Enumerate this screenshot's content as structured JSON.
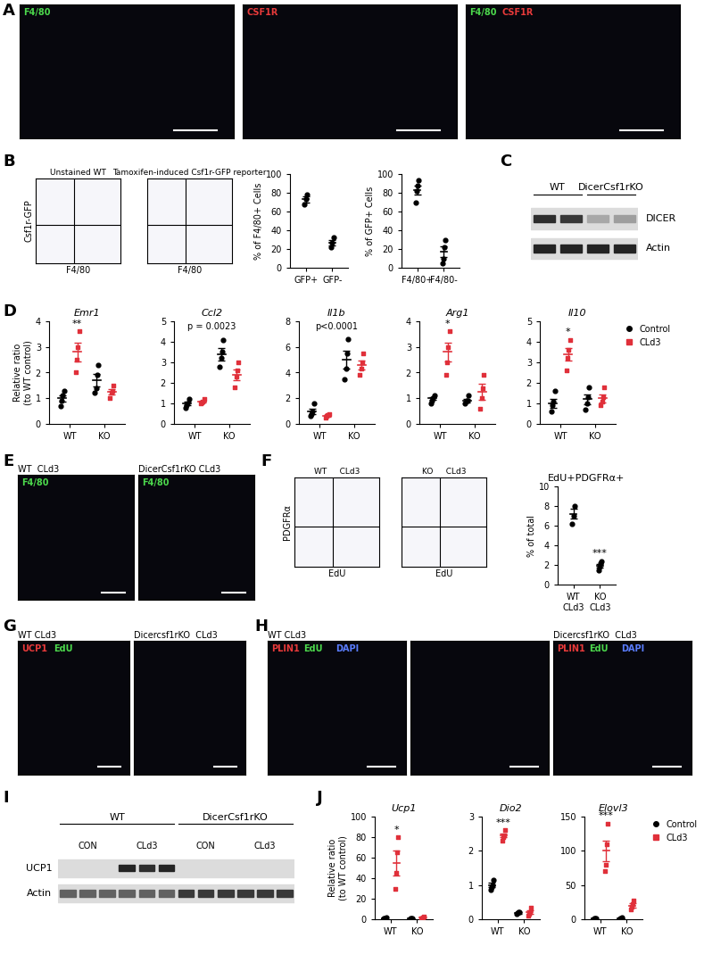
{
  "panel_letters": [
    "A",
    "B",
    "C",
    "D",
    "E",
    "F",
    "G",
    "H",
    "I",
    "J"
  ],
  "images": [
    {
      "panel": "A",
      "labels": [
        {
          "text": "F4/80",
          "color": "#4cd94c"
        }
      ]
    },
    {
      "panel": "A",
      "labels": [
        {
          "text": "CSF1R",
          "color": "#e83a3a"
        }
      ]
    },
    {
      "panel": "A",
      "labels": [
        {
          "text": "F4/80",
          "color": "#4cd94c"
        },
        {
          "text": "CSF1R",
          "color": "#e83a3a"
        }
      ]
    },
    {
      "panel": "E",
      "caption": "WT  CLd3",
      "labels": [
        {
          "text": "F4/80",
          "color": "#4cd94c"
        }
      ]
    },
    {
      "panel": "E",
      "caption": "DicerCsf1rKO CLd3",
      "labels": [
        {
          "text": "F4/80",
          "color": "#4cd94c"
        }
      ]
    },
    {
      "panel": "G",
      "caption": "WT CLd3",
      "labels": [
        {
          "text": "UCP1",
          "color": "#e83a3a"
        },
        {
          "text": "EdU",
          "color": "#4cd94c"
        }
      ]
    },
    {
      "panel": "G",
      "caption": "Dicercsf1rKO  CLd3"
    },
    {
      "panel": "H",
      "caption": "WT CLd3",
      "labels": [
        {
          "text": "PLIN1",
          "color": "#e83a3a"
        },
        {
          "text": "EdU",
          "color": "#4cd94c"
        },
        {
          "text": "DAPI",
          "color": "#5a7dff"
        }
      ]
    },
    {
      "panel": "H"
    },
    {
      "panel": "H",
      "caption": "Dicercsf1rKO  CLd3",
      "labels": [
        {
          "text": "PLIN1",
          "color": "#e83a3a"
        },
        {
          "text": "EdU",
          "color": "#4cd94c"
        },
        {
          "text": "DAPI",
          "color": "#5a7dff"
        }
      ]
    }
  ],
  "flow_plots": [
    {
      "panel": "B",
      "title": "Unstained WT",
      "xlabel": "F4/80",
      "ylabel": "Csf1r-GFP",
      "tick_labels": false
    },
    {
      "panel": "B",
      "title": "Tamoxifen-induced Csf1r-GFP reporter",
      "xlabel": "F4/80",
      "tick_labels": false
    },
    {
      "panel": "F",
      "title": "WT     CLd3",
      "xlabel": "EdU",
      "ylabel": "PDGFRα",
      "tick_labels": false
    },
    {
      "panel": "F",
      "title": "KO     CLd3",
      "xlabel": "EdU",
      "tick_labels": false
    }
  ],
  "blots": [
    {
      "panel": "C",
      "groups": [
        {
          "label": "WT",
          "lanes": 2
        },
        {
          "label": "DicerCsf1rKO",
          "lanes": 2
        }
      ],
      "rows": [
        {
          "label": "DICER",
          "intensity": [
            0.85,
            0.8,
            0.25,
            0.3
          ]
        },
        {
          "label": "Actin",
          "intensity": [
            0.9,
            0.9,
            0.9,
            0.9
          ]
        }
      ]
    },
    {
      "panel": "I",
      "groups": [
        {
          "label": "WT",
          "lanes": 6,
          "subgroups": [
            {
              "label": "CON",
              "lanes": 3
            },
            {
              "label": "CLd3",
              "lanes": 3
            }
          ]
        },
        {
          "label": "DicerCsf1rKO",
          "lanes": 6,
          "subgroups": [
            {
              "label": "CON",
              "lanes": 3
            },
            {
              "label": "CLd3",
              "lanes": 3
            }
          ]
        }
      ],
      "rows": [
        {
          "label": "UCP1",
          "intensity": [
            0,
            0,
            0,
            0.9,
            0.85,
            0.9,
            0,
            0,
            0,
            0,
            0,
            0
          ]
        },
        {
          "label": "Actin",
          "intensity": [
            0.6,
            0.6,
            0.6,
            0.6,
            0.6,
            0.6,
            0.8,
            0.8,
            0.8,
            0.8,
            0.8,
            0.8
          ]
        }
      ]
    }
  ],
  "chart_data": [
    {
      "type": "scatter",
      "panel": "B",
      "ylabel": "% of F4/80+ Cells",
      "categories": [
        "GFP+",
        "GFP-"
      ],
      "values": [
        [
          68,
          73,
          78
        ],
        [
          22,
          27,
          32
        ]
      ],
      "means": [
        73,
        27
      ],
      "errors": [
        3,
        3
      ],
      "color": "#000000",
      "marker": "circle",
      "ylim": [
        0,
        100
      ],
      "yticks": [
        0,
        20,
        40,
        60,
        80,
        100
      ]
    },
    {
      "type": "scatter",
      "panel": "B",
      "ylabel": "% of GFP+ Cells",
      "categories": [
        "F4/80+",
        "F4/80-"
      ],
      "values": [
        [
          70,
          82,
          88,
          93
        ],
        [
          5,
          10,
          22,
          30
        ]
      ],
      "means": [
        83,
        17
      ],
      "errors": [
        5,
        6
      ],
      "color": "#000000",
      "marker": "circle",
      "ylim": [
        0,
        100
      ],
      "yticks": [
        0,
        20,
        40,
        60,
        80,
        100
      ]
    },
    {
      "type": "scatter",
      "panel": "D",
      "title": "Emr1",
      "ylabel": "Relative ratio\n(to WT control)",
      "categories": [
        "WT",
        "KO"
      ],
      "series": [
        {
          "name": "Control",
          "color": "#000000",
          "marker": "circle",
          "values": [
            [
              0.7,
              0.9,
              1.1,
              1.3
            ],
            [
              1.2,
              1.4,
              1.9,
              2.3
            ]
          ],
          "means": [
            1.0,
            1.7
          ],
          "errors": [
            0.13,
            0.25
          ]
        },
        {
          "name": "CLd3",
          "color": "#e0303a",
          "marker": "square",
          "values": [
            [
              2.0,
              2.5,
              3.0,
              3.6
            ],
            [
              1.0,
              1.2,
              1.3,
              1.5
            ]
          ],
          "means": [
            2.8,
            1.25
          ],
          "errors": [
            0.35,
            0.1
          ]
        }
      ],
      "annotations": [
        {
          "text": "**",
          "category": "WT",
          "series": "CLd3"
        }
      ],
      "ylim": [
        0,
        4
      ],
      "yticks": [
        0,
        1,
        2,
        3,
        4
      ]
    },
    {
      "type": "scatter",
      "panel": "D",
      "title": "Ccl2",
      "categories": [
        "WT",
        "KO"
      ],
      "series": [
        {
          "name": "Control",
          "color": "#000000",
          "marker": "circle",
          "values": [
            [
              0.8,
              0.9,
              1.0,
              1.2
            ],
            [
              2.8,
              3.2,
              3.5,
              4.1
            ]
          ],
          "means": [
            1.0,
            3.4
          ],
          "errors": [
            0.08,
            0.3
          ]
        },
        {
          "name": "CLd3",
          "color": "#e0303a",
          "marker": "square",
          "values": [
            [
              1.0,
              1.05,
              1.1,
              1.2
            ],
            [
              1.8,
              2.3,
              2.6,
              3.0
            ]
          ],
          "means": [
            1.1,
            2.4
          ],
          "errors": [
            0.05,
            0.25
          ]
        }
      ],
      "annotations": [
        {
          "text": "p = 0.0023"
        }
      ],
      "ylim": [
        0,
        5
      ],
      "yticks": [
        0,
        1,
        2,
        3,
        4,
        5
      ]
    },
    {
      "type": "scatter",
      "panel": "D",
      "title": "Il1b",
      "categories": [
        "WT",
        "KO"
      ],
      "series": [
        {
          "name": "Control",
          "color": "#000000",
          "marker": "circle",
          "values": [
            [
              0.6,
              0.8,
              1.0,
              1.6
            ],
            [
              3.5,
              4.3,
              5.5,
              6.6
            ]
          ],
          "means": [
            1.0,
            5.0
          ],
          "errors": [
            0.2,
            0.7
          ]
        },
        {
          "name": "CLd3",
          "color": "#e0303a",
          "marker": "square",
          "values": [
            [
              0.5,
              0.6,
              0.7,
              0.8
            ],
            [
              3.8,
              4.3,
              4.8,
              5.5
            ]
          ],
          "means": [
            0.65,
            4.6
          ],
          "errors": [
            0.06,
            0.35
          ]
        }
      ],
      "annotations": [
        {
          "text": "p<0.0001"
        }
      ],
      "ylim": [
        0,
        8
      ],
      "yticks": [
        0,
        2,
        4,
        6,
        8
      ]
    },
    {
      "type": "scatter",
      "panel": "D",
      "title": "Arg1",
      "categories": [
        "WT",
        "KO"
      ],
      "series": [
        {
          "name": "Control",
          "color": "#000000",
          "marker": "circle",
          "values": [
            [
              0.8,
              0.9,
              1.0,
              1.1
            ],
            [
              0.8,
              0.9,
              0.9,
              1.1
            ]
          ],
          "means": [
            1.0,
            0.9
          ],
          "errors": [
            0.06,
            0.06
          ]
        },
        {
          "name": "CLd3",
          "color": "#e0303a",
          "marker": "square",
          "values": [
            [
              1.9,
              2.4,
              3.0,
              3.6
            ],
            [
              0.6,
              1.0,
              1.4,
              1.9
            ]
          ],
          "means": [
            2.8,
            1.25
          ],
          "errors": [
            0.35,
            0.3
          ]
        }
      ],
      "annotations": [
        {
          "text": "*",
          "category": "WT",
          "series": "CLd3"
        }
      ],
      "ylim": [
        0,
        4
      ],
      "yticks": [
        0,
        1,
        2,
        3,
        4
      ]
    },
    {
      "type": "scatter",
      "panel": "D",
      "title": "Il10",
      "categories": [
        "WT",
        "KO"
      ],
      "legend": "upper left",
      "series": [
        {
          "name": "Control",
          "color": "#000000",
          "marker": "circle",
          "values": [
            [
              0.6,
              0.9,
              1.1,
              1.6
            ],
            [
              0.7,
              1.0,
              1.3,
              1.8
            ]
          ],
          "means": [
            1.0,
            1.2
          ],
          "errors": [
            0.2,
            0.25
          ]
        },
        {
          "name": "CLd3",
          "color": "#e0303a",
          "marker": "square",
          "values": [
            [
              2.6,
              3.2,
              3.6,
              4.1
            ],
            [
              0.9,
              1.1,
              1.3,
              1.8
            ]
          ],
          "means": [
            3.4,
            1.25
          ],
          "errors": [
            0.3,
            0.2
          ]
        }
      ],
      "annotations": [
        {
          "text": "*",
          "category": "WT",
          "series": "CLd3"
        }
      ],
      "ylim": [
        0,
        5
      ],
      "yticks": [
        0,
        1,
        2,
        3,
        4,
        5
      ]
    },
    {
      "type": "scatter",
      "panel": "F",
      "title": "EdU+PDGFRα+",
      "ylabel": "% of total",
      "categories": [
        "WT\nCLd3",
        "KO\nCLd3"
      ],
      "values": [
        [
          6.2,
          7.0,
          8.0
        ],
        [
          1.5,
          1.8,
          2.2,
          2.4
        ]
      ],
      "means": [
        7.2,
        1.9
      ],
      "errors": [
        0.5,
        0.2
      ],
      "color": "#000000",
      "marker": "circle",
      "annotations": [
        {
          "text": "***",
          "category": "KO\nCLd3"
        }
      ],
      "ylim": [
        0,
        10
      ],
      "yticks": [
        0,
        2,
        4,
        6,
        8,
        10
      ]
    },
    {
      "type": "scatter",
      "panel": "J",
      "title": "Ucp1",
      "ylabel": "Relative ratio\n(to WT control)",
      "categories": [
        "WT",
        "KO"
      ],
      "series": [
        {
          "name": "Control",
          "color": "#000000",
          "marker": "circle",
          "values": [
            [
              0.5,
              1,
              1.2,
              1.5
            ],
            [
              0.3,
              0.5,
              0.6,
              0.8
            ]
          ],
          "means": [
            1,
            0.5
          ],
          "errors": [
            0.2,
            0.1
          ]
        },
        {
          "name": "CLd3",
          "color": "#e0303a",
          "marker": "square",
          "values": [
            [
              30,
              45,
              65,
              80
            ],
            [
              0.5,
              1,
              2,
              3
            ]
          ],
          "means": [
            55,
            2
          ],
          "errors": [
            12,
            0.6
          ]
        }
      ],
      "annotations": [
        {
          "text": "*",
          "category": "WT",
          "series": "CLd3"
        }
      ],
      "ylim": [
        0,
        100
      ],
      "yticks": [
        0,
        20,
        40,
        60,
        80,
        100
      ]
    },
    {
      "type": "scatter",
      "panel": "J",
      "title": "Dio2",
      "categories": [
        "WT",
        "KO"
      ],
      "series": [
        {
          "name": "Control",
          "color": "#000000",
          "marker": "circle",
          "values": [
            [
              0.85,
              0.95,
              1.0,
              1.15
            ],
            [
              0.15,
              0.17,
              0.2,
              0.22
            ]
          ],
          "means": [
            1.0,
            0.18
          ],
          "errors": [
            0.06,
            0.02
          ]
        },
        {
          "name": "CLd3",
          "color": "#e0303a",
          "marker": "square",
          "values": [
            [
              2.3,
              2.4,
              2.45,
              2.6
            ],
            [
              0.1,
              0.15,
              0.2,
              0.35
            ]
          ],
          "means": [
            2.45,
            0.2
          ],
          "errors": [
            0.06,
            0.05
          ]
        }
      ],
      "annotations": [
        {
          "text": "***",
          "category": "WT",
          "series": "CLd3"
        }
      ],
      "ylim": [
        0,
        3
      ],
      "yticks": [
        0,
        1,
        2,
        3
      ]
    },
    {
      "type": "scatter",
      "panel": "J",
      "title": "Elovl3",
      "categories": [
        "WT",
        "KO"
      ],
      "legend": "upper left",
      "series": [
        {
          "name": "Control",
          "color": "#000000",
          "marker": "circle",
          "values": [
            [
              0.5,
              1,
              1,
              1.5
            ],
            [
              0.5,
              1,
              1,
              2
            ]
          ],
          "means": [
            1,
            1
          ],
          "errors": [
            0.2,
            0.3
          ]
        },
        {
          "name": "CLd3",
          "color": "#e0303a",
          "marker": "square",
          "values": [
            [
              70,
              80,
              110,
              140
            ],
            [
              15,
              18,
              22,
              28
            ]
          ],
          "means": [
            100,
            20
          ],
          "errors": [
            15,
            3
          ]
        }
      ],
      "annotations": [
        {
          "text": "***",
          "category": "WT",
          "series": "CLd3"
        }
      ],
      "ylim": [
        0,
        150
      ],
      "yticks": [
        0,
        50,
        100,
        150
      ]
    }
  ]
}
